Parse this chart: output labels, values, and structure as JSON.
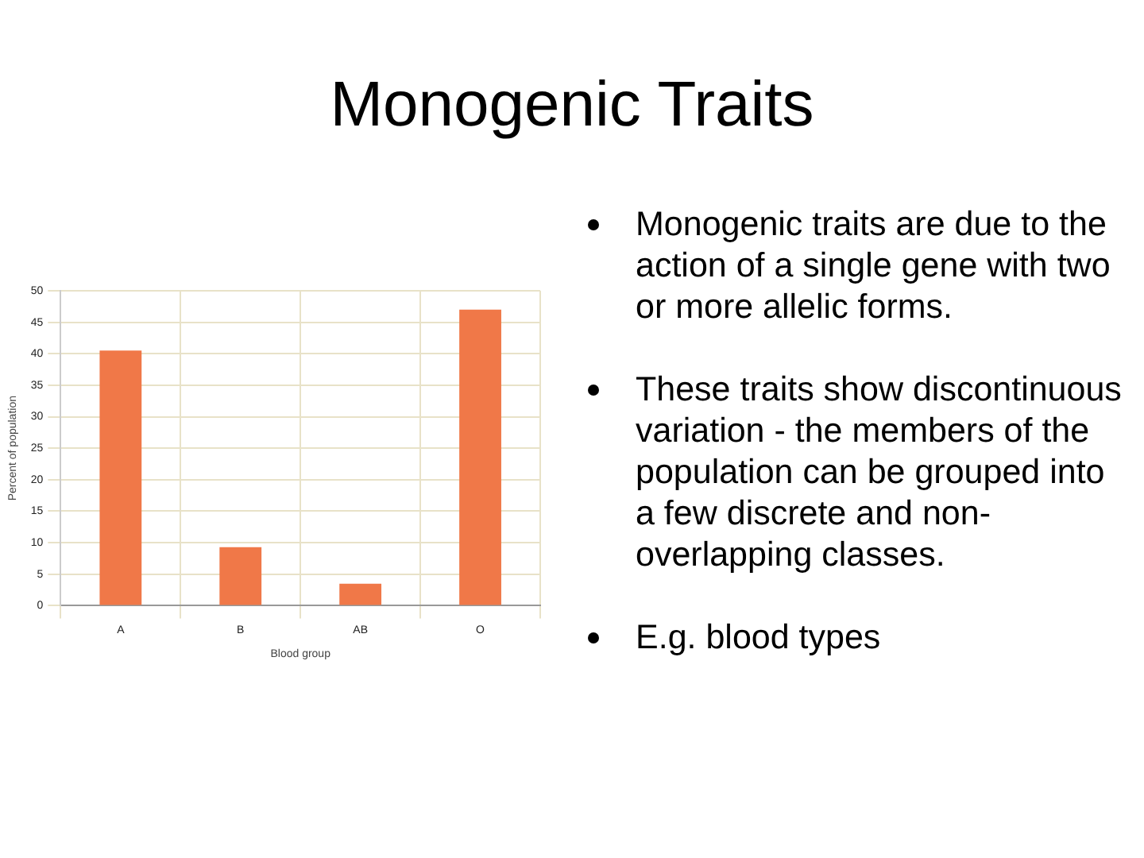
{
  "chart_data": {
    "type": "bar",
    "title": "Monogenic Traits",
    "xlabel": "Blood group",
    "ylabel": "Percent of population",
    "categories": [
      "A",
      "B",
      "AB",
      "O"
    ],
    "values": [
      40.5,
      9.3,
      3.5,
      47.0
    ],
    "color": "#f07848",
    "ylim": [
      0,
      50
    ],
    "yticks": [
      0,
      5,
      10,
      15,
      20,
      25,
      30,
      35,
      40,
      45,
      50
    ],
    "grid": true,
    "annotations": [
      "Monogenic traits are due to the action of a single gene with two or more allelic forms.",
      "These traits show discontinuous variation - the members of the population can be grouped into a few discrete and non-overlapping classes.",
      "E.g. blood types"
    ]
  }
}
